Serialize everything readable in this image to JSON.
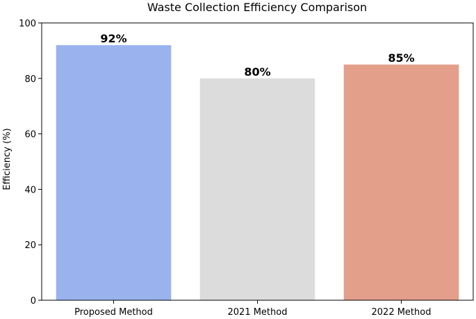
{
  "chart_data": {
    "type": "bar",
    "title": "Waste Collection Efficiency Comparison",
    "xlabel": "",
    "ylabel": "Efficiency (%)",
    "ylim": [
      0,
      100
    ],
    "yticks": [
      0,
      20,
      40,
      60,
      80,
      100
    ],
    "categories": [
      "Proposed Method",
      "2021 Method",
      "2022 Method"
    ],
    "values": [
      92,
      80,
      85
    ],
    "data_labels": [
      "92%",
      "80%",
      "85%"
    ],
    "colors": [
      "#9ab3ef",
      "#dcdcdc",
      "#e39f89"
    ],
    "grid": false,
    "legend": "none"
  }
}
